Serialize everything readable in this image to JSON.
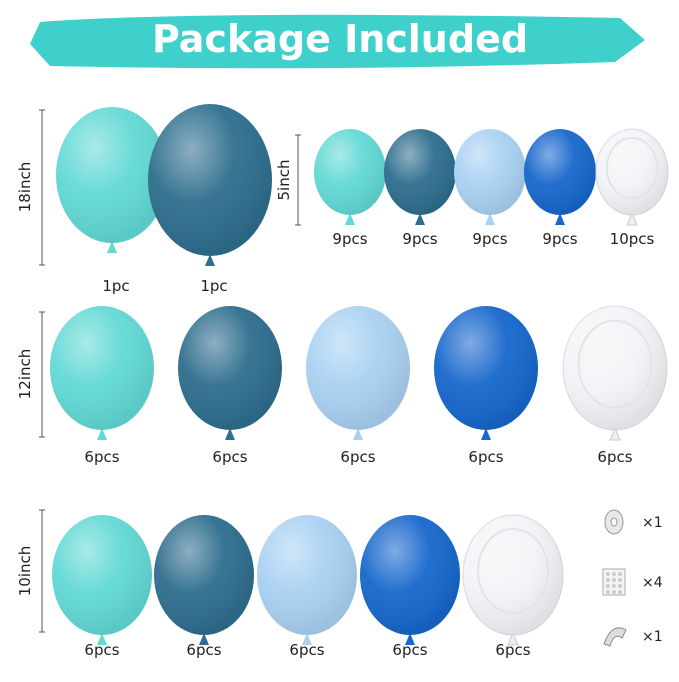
{
  "title": "Package Included",
  "rows": [
    {
      "size": "18inch",
      "items": [
        {
          "qty": "1pc"
        },
        {
          "qty": "1pc"
        }
      ]
    },
    {
      "size": "5inch",
      "items": [
        {
          "qty": "9pcs"
        },
        {
          "qty": "9pcs"
        },
        {
          "qty": "9pcs"
        },
        {
          "qty": "9pcs"
        },
        {
          "qty": "10pcs"
        }
      ]
    },
    {
      "size": "12inch",
      "items": [
        {
          "qty": "6pcs"
        },
        {
          "qty": "6pcs"
        },
        {
          "qty": "6pcs"
        },
        {
          "qty": "6pcs"
        },
        {
          "qty": "6pcs"
        }
      ]
    },
    {
      "size": "10inch",
      "items": [
        {
          "qty": "6pcs"
        },
        {
          "qty": "6pcs"
        },
        {
          "qty": "6pcs"
        },
        {
          "qty": "6pcs"
        },
        {
          "qty": "6pcs"
        }
      ]
    }
  ],
  "accessories": [
    {
      "qty": "×1"
    },
    {
      "qty": "×4"
    },
    {
      "qty": "×1"
    }
  ]
}
